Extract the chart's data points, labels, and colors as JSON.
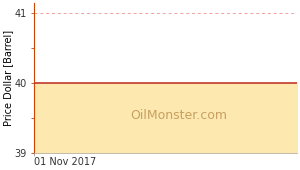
{
  "title": "",
  "ylabel": "Price Dollar [Barrel]",
  "xlabel": "01 Nov 2017",
  "ylim": [
    39.0,
    41.15
  ],
  "xlim": [
    0,
    1
  ],
  "price_value": 40.0,
  "fill_color": "#fde8b0",
  "line_color": "#c0392b",
  "dash_line_y": 41.0,
  "dash_color": "#f0a0a0",
  "watermark": "OilMonster.com",
  "watermark_color": "#c8a060",
  "yticks": [
    39,
    40,
    41
  ],
  "bg_color": "#ffffff",
  "spine_color": "#cc4400",
  "tick_color": "#cc4400",
  "label_fontsize": 7,
  "watermark_fontsize": 9
}
